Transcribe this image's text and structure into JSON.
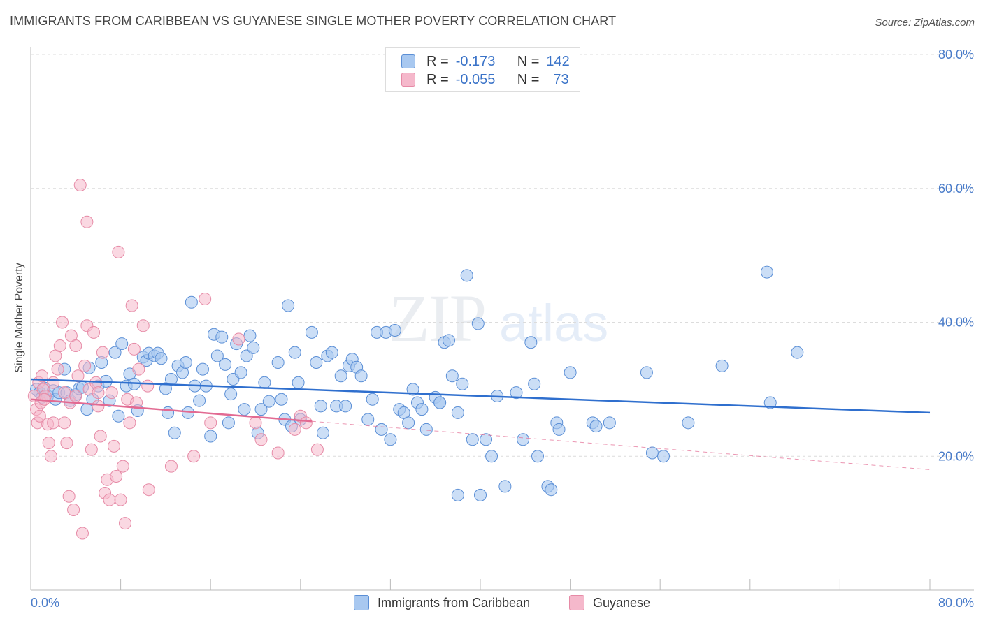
{
  "header": {
    "title": "IMMIGRANTS FROM CARIBBEAN VS GUYANESE SINGLE MOTHER POVERTY CORRELATION CHART",
    "source": "Source: ZipAtlas.com"
  },
  "watermark": {
    "zip": "ZIP",
    "atlas": "atlas"
  },
  "legend_top": {
    "rows": [
      {
        "r_label": "R =",
        "r_value": "-0.173",
        "n_label": "N =",
        "n_value": "142",
        "color": "#a8c8f0"
      },
      {
        "r_label": "R =",
        "r_value": "-0.055",
        "n_label": "N =",
        "n_value": "73",
        "color": "#f5b8cb"
      }
    ]
  },
  "legend_bottom": {
    "items": [
      {
        "label": "Immigrants from Caribbean",
        "color": "#a8c8f0"
      },
      {
        "label": "Guyanese",
        "color": "#f5b8cb"
      }
    ]
  },
  "chart_data": {
    "type": "scatter",
    "title": "IMMIGRANTS FROM CARIBBEAN VS GUYANESE SINGLE MOTHER POVERTY CORRELATION CHART",
    "xlabel": "",
    "ylabel": "Single Mother Poverty",
    "xlim": [
      0,
      80
    ],
    "ylim": [
      0,
      80
    ],
    "x_tick_labels": [
      "0.0%",
      "80.0%"
    ],
    "y_tick_labels": [
      "20.0%",
      "40.0%",
      "60.0%",
      "80.0%"
    ],
    "y_ticks": [
      20,
      40,
      60,
      80
    ],
    "grid": "horizontal dashed",
    "legend_position": "top-center",
    "colors": {
      "blue_fill": "#a8c8f0",
      "blue_stroke": "#5b8fd6",
      "blue_line": "#2f6fce",
      "pink_fill": "#f5b8cb",
      "pink_stroke": "#e68aa6",
      "pink_line": "#e26a92"
    },
    "series": [
      {
        "name": "Immigrants from Caribbean",
        "trend": {
          "x0": 0,
          "y0": 31.5,
          "x1": 80,
          "y1": 26.5
        },
        "points": [
          [
            0.5,
            30.0
          ],
          [
            0.8,
            29.5
          ],
          [
            1.0,
            28.8
          ],
          [
            1.2,
            30.2
          ],
          [
            1.5,
            29.0
          ],
          [
            2.0,
            29.8
          ],
          [
            2.2,
            28.5
          ],
          [
            2.5,
            29.5
          ],
          [
            3.0,
            33.0
          ],
          [
            3.2,
            29.5
          ],
          [
            3.5,
            28.3
          ],
          [
            4.0,
            29.2
          ],
          [
            4.3,
            30.1
          ],
          [
            4.6,
            30.3
          ],
          [
            5.0,
            27.0
          ],
          [
            5.2,
            33.2
          ],
          [
            5.5,
            28.5
          ],
          [
            6.0,
            30.5
          ],
          [
            6.3,
            34.0
          ],
          [
            6.7,
            31.2
          ],
          [
            7.0,
            28.3
          ],
          [
            7.5,
            35.5
          ],
          [
            7.8,
            26.0
          ],
          [
            8.1,
            36.8
          ],
          [
            8.5,
            30.5
          ],
          [
            8.8,
            32.3
          ],
          [
            9.2,
            30.8
          ],
          [
            9.5,
            26.8
          ],
          [
            10.0,
            34.8
          ],
          [
            10.3,
            34.3
          ],
          [
            10.5,
            35.4
          ],
          [
            11.0,
            35.0
          ],
          [
            11.3,
            35.4
          ],
          [
            11.6,
            34.6
          ],
          [
            12.0,
            30.1
          ],
          [
            12.2,
            26.5
          ],
          [
            12.5,
            31.5
          ],
          [
            12.8,
            23.5
          ],
          [
            13.1,
            33.5
          ],
          [
            13.5,
            32.5
          ],
          [
            13.8,
            34.0
          ],
          [
            14.0,
            26.5
          ],
          [
            14.3,
            43.0
          ],
          [
            14.6,
            30.5
          ],
          [
            15.0,
            28.3
          ],
          [
            15.3,
            33.0
          ],
          [
            15.6,
            30.5
          ],
          [
            16.0,
            23.0
          ],
          [
            16.3,
            38.2
          ],
          [
            16.6,
            35.0
          ],
          [
            17.0,
            37.8
          ],
          [
            17.3,
            33.7
          ],
          [
            17.6,
            25.0
          ],
          [
            17.8,
            29.3
          ],
          [
            18.0,
            31.5
          ],
          [
            18.3,
            36.8
          ],
          [
            18.7,
            32.5
          ],
          [
            19.0,
            27.0
          ],
          [
            19.2,
            35.0
          ],
          [
            19.5,
            38.0
          ],
          [
            19.8,
            36.2
          ],
          [
            20.2,
            23.5
          ],
          [
            20.5,
            27.0
          ],
          [
            20.8,
            31.0
          ],
          [
            21.2,
            28.2
          ],
          [
            22.0,
            34.0
          ],
          [
            22.3,
            28.5
          ],
          [
            22.6,
            25.5
          ],
          [
            22.9,
            42.5
          ],
          [
            23.2,
            24.5
          ],
          [
            23.5,
            35.5
          ],
          [
            23.8,
            31.0
          ],
          [
            24.0,
            25.5
          ],
          [
            25.0,
            38.5
          ],
          [
            25.4,
            34.0
          ],
          [
            25.8,
            27.5
          ],
          [
            26.0,
            23.5
          ],
          [
            26.4,
            35.0
          ],
          [
            26.8,
            35.5
          ],
          [
            27.2,
            27.5
          ],
          [
            27.6,
            32.0
          ],
          [
            28.0,
            27.5
          ],
          [
            28.3,
            33.5
          ],
          [
            28.6,
            34.5
          ],
          [
            29.0,
            33.3
          ],
          [
            29.4,
            32.0
          ],
          [
            30.0,
            25.5
          ],
          [
            30.4,
            28.5
          ],
          [
            30.8,
            38.5
          ],
          [
            31.2,
            24.0
          ],
          [
            31.6,
            38.5
          ],
          [
            32.0,
            22.5
          ],
          [
            32.4,
            38.8
          ],
          [
            32.8,
            27.0
          ],
          [
            33.2,
            26.5
          ],
          [
            33.6,
            25.0
          ],
          [
            34.0,
            30.0
          ],
          [
            34.4,
            28.0
          ],
          [
            34.8,
            27.0
          ],
          [
            35.2,
            24.0
          ],
          [
            36.0,
            28.8
          ],
          [
            36.4,
            28.0
          ],
          [
            36.8,
            37.0
          ],
          [
            37.2,
            37.3
          ],
          [
            37.5,
            32.0
          ],
          [
            38.0,
            26.5
          ],
          [
            38.4,
            30.8
          ],
          [
            38.8,
            47.0
          ],
          [
            39.3,
            22.5
          ],
          [
            39.8,
            39.8
          ],
          [
            40.5,
            22.5
          ],
          [
            41.0,
            20.0
          ],
          [
            41.5,
            29.0
          ],
          [
            42.2,
            15.5
          ],
          [
            43.2,
            29.5
          ],
          [
            44.5,
            37.0
          ],
          [
            44.8,
            30.8
          ],
          [
            45.1,
            20.0
          ],
          [
            46.0,
            15.5
          ],
          [
            46.3,
            15.0
          ],
          [
            46.8,
            25.0
          ],
          [
            47.0,
            24.0
          ],
          [
            48.0,
            32.5
          ],
          [
            50.0,
            25.0
          ],
          [
            50.3,
            24.5
          ],
          [
            51.5,
            25.0
          ],
          [
            54.8,
            32.5
          ],
          [
            55.3,
            20.5
          ],
          [
            56.3,
            20.0
          ],
          [
            58.5,
            25.0
          ],
          [
            61.5,
            33.5
          ],
          [
            65.5,
            47.5
          ],
          [
            65.8,
            28.0
          ],
          [
            68.2,
            35.5
          ],
          [
            40.0,
            14.2
          ],
          [
            38.0,
            14.2
          ],
          [
            36.4,
            28.0
          ],
          [
            43.8,
            22.5
          ]
        ]
      },
      {
        "name": "Guyanese",
        "trend": {
          "x0": 0,
          "y0": 28.5,
          "x1": 80,
          "y1": 18.0
        },
        "solid_until_x": 25.0,
        "points": [
          [
            0.3,
            29.0
          ],
          [
            0.5,
            27.0
          ],
          [
            0.6,
            25.0
          ],
          [
            0.7,
            31.0
          ],
          [
            0.9,
            28.0
          ],
          [
            1.0,
            32.0
          ],
          [
            1.1,
            30.0
          ],
          [
            1.3,
            29.0
          ],
          [
            1.5,
            24.8
          ],
          [
            1.6,
            22.0
          ],
          [
            1.8,
            20.0
          ],
          [
            2.0,
            31.0
          ],
          [
            2.2,
            35.0
          ],
          [
            2.4,
            33.0
          ],
          [
            2.6,
            36.5
          ],
          [
            2.8,
            40.0
          ],
          [
            3.0,
            29.5
          ],
          [
            3.2,
            22.0
          ],
          [
            3.4,
            14.0
          ],
          [
            3.5,
            28.0
          ],
          [
            3.6,
            38.0
          ],
          [
            3.8,
            12.0
          ],
          [
            4.0,
            36.5
          ],
          [
            4.2,
            32.0
          ],
          [
            4.4,
            60.5
          ],
          [
            4.6,
            8.5
          ],
          [
            4.8,
            33.5
          ],
          [
            5.0,
            39.5
          ],
          [
            5.2,
            30.0
          ],
          [
            5.4,
            21.0
          ],
          [
            5.6,
            38.5
          ],
          [
            5.8,
            31.0
          ],
          [
            6.0,
            29.5
          ],
          [
            6.2,
            23.0
          ],
          [
            6.4,
            35.5
          ],
          [
            6.6,
            14.5
          ],
          [
            6.8,
            16.5
          ],
          [
            7.0,
            13.5
          ],
          [
            7.2,
            29.5
          ],
          [
            7.4,
            21.5
          ],
          [
            7.6,
            17.0
          ],
          [
            7.8,
            50.5
          ],
          [
            8.0,
            13.5
          ],
          [
            8.2,
            18.5
          ],
          [
            8.4,
            10.0
          ],
          [
            8.6,
            28.5
          ],
          [
            8.8,
            25.0
          ],
          [
            9.0,
            42.5
          ],
          [
            9.2,
            36.0
          ],
          [
            9.4,
            28.0
          ],
          [
            9.6,
            33.0
          ],
          [
            10.0,
            39.5
          ],
          [
            10.4,
            30.5
          ],
          [
            10.5,
            15.0
          ],
          [
            12.5,
            18.5
          ],
          [
            14.5,
            20.0
          ],
          [
            15.5,
            43.5
          ],
          [
            16.0,
            25.0
          ],
          [
            18.5,
            37.5
          ],
          [
            20.0,
            25.0
          ],
          [
            20.5,
            22.5
          ],
          [
            22.0,
            20.5
          ],
          [
            23.5,
            24.0
          ],
          [
            24.0,
            26.0
          ],
          [
            24.5,
            25.0
          ],
          [
            25.5,
            21.0
          ],
          [
            2.0,
            25.0
          ],
          [
            1.2,
            28.5
          ],
          [
            0.8,
            26.0
          ],
          [
            3.0,
            25.0
          ],
          [
            5.0,
            55.0
          ],
          [
            4.0,
            29.0
          ],
          [
            6.0,
            27.5
          ]
        ]
      }
    ]
  }
}
